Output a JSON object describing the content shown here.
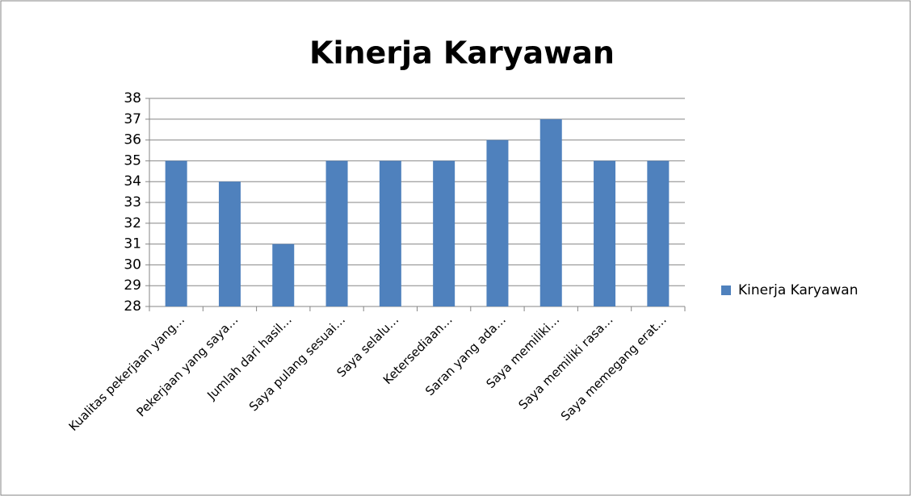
{
  "chart_data": {
    "type": "bar",
    "title": "Kinerja Karyawan",
    "categories": [
      "Kualitas pekerjaan yang…",
      "Pekerjaan yang saya…",
      "Jumlah dari hasil…",
      "Saya pulang sesuai…",
      "Saya selalu…",
      "Ketersediaan…",
      "Saran yang ada…",
      "Saya memiliki…",
      "Saya memiliki rasa…",
      "Saya memegang erat…"
    ],
    "series": [
      {
        "name": "Kinerja Karyawan",
        "color": "#4f81bd",
        "values": [
          35,
          34,
          31,
          35,
          35,
          35,
          36,
          37,
          35,
          35
        ]
      }
    ],
    "ylim": [
      28,
      38
    ],
    "yticks": [
      28,
      29,
      30,
      31,
      32,
      33,
      34,
      35,
      36,
      37,
      38
    ],
    "grid": true,
    "legend": "right"
  }
}
